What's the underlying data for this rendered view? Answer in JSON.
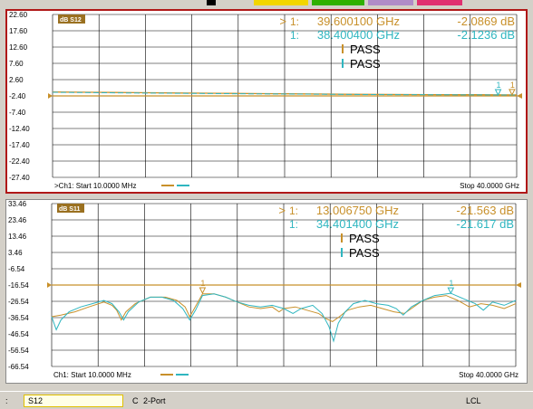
{
  "colors": {
    "trace1": "#c8902a",
    "trace2": "#2fb6c0",
    "limit": "#c8902a",
    "grid": "#000000",
    "badge_bg": "#9a7020",
    "frame_active": "#b01818"
  },
  "tab_colors": [
    "#000000",
    "#f2d600",
    "#2fb000",
    "#b08cc8",
    "#e03070"
  ],
  "channels": [
    {
      "param": "dB S12",
      "ticks": [
        "22.60",
        "17.60",
        "12.60",
        "7.60",
        "2.60",
        "-2.40",
        "-7.40",
        "-12.40",
        "-17.40",
        "-22.40",
        "-27.40"
      ],
      "yrange": [
        -27.4,
        22.6
      ],
      "markers": [
        {
          "prefix": ">",
          "num": "1:",
          "freq": "39.600100 GHz",
          "value": "-2.0869 dB",
          "color": "trace1"
        },
        {
          "prefix": "",
          "num": "1:",
          "freq": "38.400400 GHz",
          "value": "-2.1236 dB",
          "color": "trace2"
        }
      ],
      "pass": [
        {
          "text": "PASS",
          "color": "trace1"
        },
        {
          "text": "PASS",
          "color": "trace2"
        }
      ],
      "limit_line": -2.4,
      "start_label": ">Ch1: Start  10.0000 MHz",
      "stop_label": "Stop  40.0000 GHz",
      "trace_levels_1": [
        -1.2,
        -1.3,
        -1.4,
        -1.5,
        -1.6,
        -1.7,
        -1.8,
        -1.9,
        -1.95,
        -2.0,
        -2.05,
        -2.09
      ],
      "trace_levels_2": [
        -1.3,
        -1.4,
        -1.5,
        -1.6,
        -1.7,
        -1.8,
        -1.85,
        -1.95,
        -2.0,
        -2.05,
        -2.1,
        -2.12
      ],
      "marker_tags": [
        {
          "label": "1",
          "x_ghz": 38.4,
          "y": -2.12,
          "color": "trace2"
        },
        {
          "label": "1",
          "x_ghz": 39.6,
          "y": -2.09,
          "color": "trace1"
        }
      ]
    },
    {
      "param": "dB S11",
      "ticks": [
        "33.46",
        "23.46",
        "13.46",
        "3.46",
        "-6.54",
        "-16.54",
        "-26.54",
        "-36.54",
        "-46.54",
        "-56.54",
        "-66.54"
      ],
      "yrange": [
        -66.54,
        33.46
      ],
      "markers": [
        {
          "prefix": ">",
          "num": "1:",
          "freq": "13.006750 GHz",
          "value": "-21.563 dB",
          "color": "trace1"
        },
        {
          "prefix": "",
          "num": "1:",
          "freq": "34.401400 GHz",
          "value": "-21.617 dB",
          "color": "trace2"
        }
      ],
      "pass": [
        {
          "text": "PASS",
          "color": "trace1"
        },
        {
          "text": "PASS",
          "color": "trace2"
        }
      ],
      "limit_line": -16.54,
      "start_label": "Ch1: Start  10.0000 MHz",
      "stop_label": "Stop  40.0000 GHz",
      "trace_points_1": [
        [
          0,
          -36
        ],
        [
          0.8,
          -35
        ],
        [
          2,
          -33
        ],
        [
          3.2,
          -30
        ],
        [
          4.5,
          -27
        ],
        [
          5.2,
          -29
        ],
        [
          5.6,
          -32
        ],
        [
          6,
          -38
        ],
        [
          6.4,
          -33
        ],
        [
          7.2,
          -28
        ],
        [
          8.5,
          -24
        ],
        [
          9.8,
          -24
        ],
        [
          10.8,
          -26
        ],
        [
          11.5,
          -30
        ],
        [
          11.9,
          -36
        ],
        [
          12.3,
          -31
        ],
        [
          13,
          -22
        ],
        [
          14,
          -22
        ],
        [
          15,
          -24
        ],
        [
          16,
          -27
        ],
        [
          17,
          -30
        ],
        [
          18,
          -31
        ],
        [
          19,
          -30
        ],
        [
          19.6,
          -33
        ],
        [
          20,
          -31
        ],
        [
          21,
          -30
        ],
        [
          22,
          -32
        ],
        [
          23,
          -34
        ],
        [
          23.6,
          -37
        ],
        [
          24.2,
          -39
        ],
        [
          24.8,
          -36
        ],
        [
          25.5,
          -32
        ],
        [
          26.5,
          -30
        ],
        [
          27.5,
          -29
        ],
        [
          28.5,
          -31
        ],
        [
          29.5,
          -33
        ],
        [
          30.4,
          -34
        ],
        [
          31,
          -31
        ],
        [
          32,
          -26
        ],
        [
          33,
          -24
        ],
        [
          34,
          -23
        ],
        [
          35,
          -26
        ],
        [
          36,
          -30
        ],
        [
          37,
          -28
        ],
        [
          38,
          -29
        ],
        [
          39,
          -31
        ],
        [
          40,
          -28
        ]
      ],
      "trace_points_2": [
        [
          0,
          -36
        ],
        [
          0.4,
          -44
        ],
        [
          0.8,
          -38
        ],
        [
          1.5,
          -33
        ],
        [
          2.5,
          -30
        ],
        [
          3.5,
          -28
        ],
        [
          4.5,
          -26
        ],
        [
          5.2,
          -28
        ],
        [
          5.8,
          -33
        ],
        [
          6.2,
          -38
        ],
        [
          6.6,
          -33
        ],
        [
          7.5,
          -27
        ],
        [
          8.5,
          -24
        ],
        [
          9.5,
          -24
        ],
        [
          10.5,
          -26
        ],
        [
          11.3,
          -31
        ],
        [
          11.9,
          -38
        ],
        [
          12.4,
          -32
        ],
        [
          13,
          -23
        ],
        [
          14,
          -22
        ],
        [
          15,
          -24
        ],
        [
          16,
          -27
        ],
        [
          17,
          -29
        ],
        [
          18,
          -30
        ],
        [
          19,
          -29
        ],
        [
          20,
          -31
        ],
        [
          20.8,
          -34
        ],
        [
          21.5,
          -31
        ],
        [
          22.5,
          -29
        ],
        [
          23.3,
          -34
        ],
        [
          23.9,
          -42
        ],
        [
          24.3,
          -51
        ],
        [
          24.7,
          -40
        ],
        [
          25.3,
          -33
        ],
        [
          26,
          -28
        ],
        [
          27,
          -26
        ],
        [
          28,
          -28
        ],
        [
          29,
          -29
        ],
        [
          29.7,
          -31
        ],
        [
          30.3,
          -35
        ],
        [
          31,
          -30
        ],
        [
          32,
          -26
        ],
        [
          33,
          -23
        ],
        [
          34.4,
          -21.6
        ],
        [
          35.5,
          -25
        ],
        [
          36.5,
          -28
        ],
        [
          37.2,
          -32
        ],
        [
          38,
          -27
        ],
        [
          39,
          -29
        ],
        [
          40,
          -26
        ]
      ],
      "marker_tags": [
        {
          "label": "1",
          "x_ghz": 13.0,
          "y": -21.56,
          "color": "trace1"
        },
        {
          "label": "1",
          "x_ghz": 34.4,
          "y": -21.62,
          "color": "trace2"
        }
      ]
    }
  ],
  "statusbar": {
    "left_marker": ":",
    "param": "S12",
    "cal": "C",
    "port": "2-Port",
    "remote": "LCL"
  }
}
